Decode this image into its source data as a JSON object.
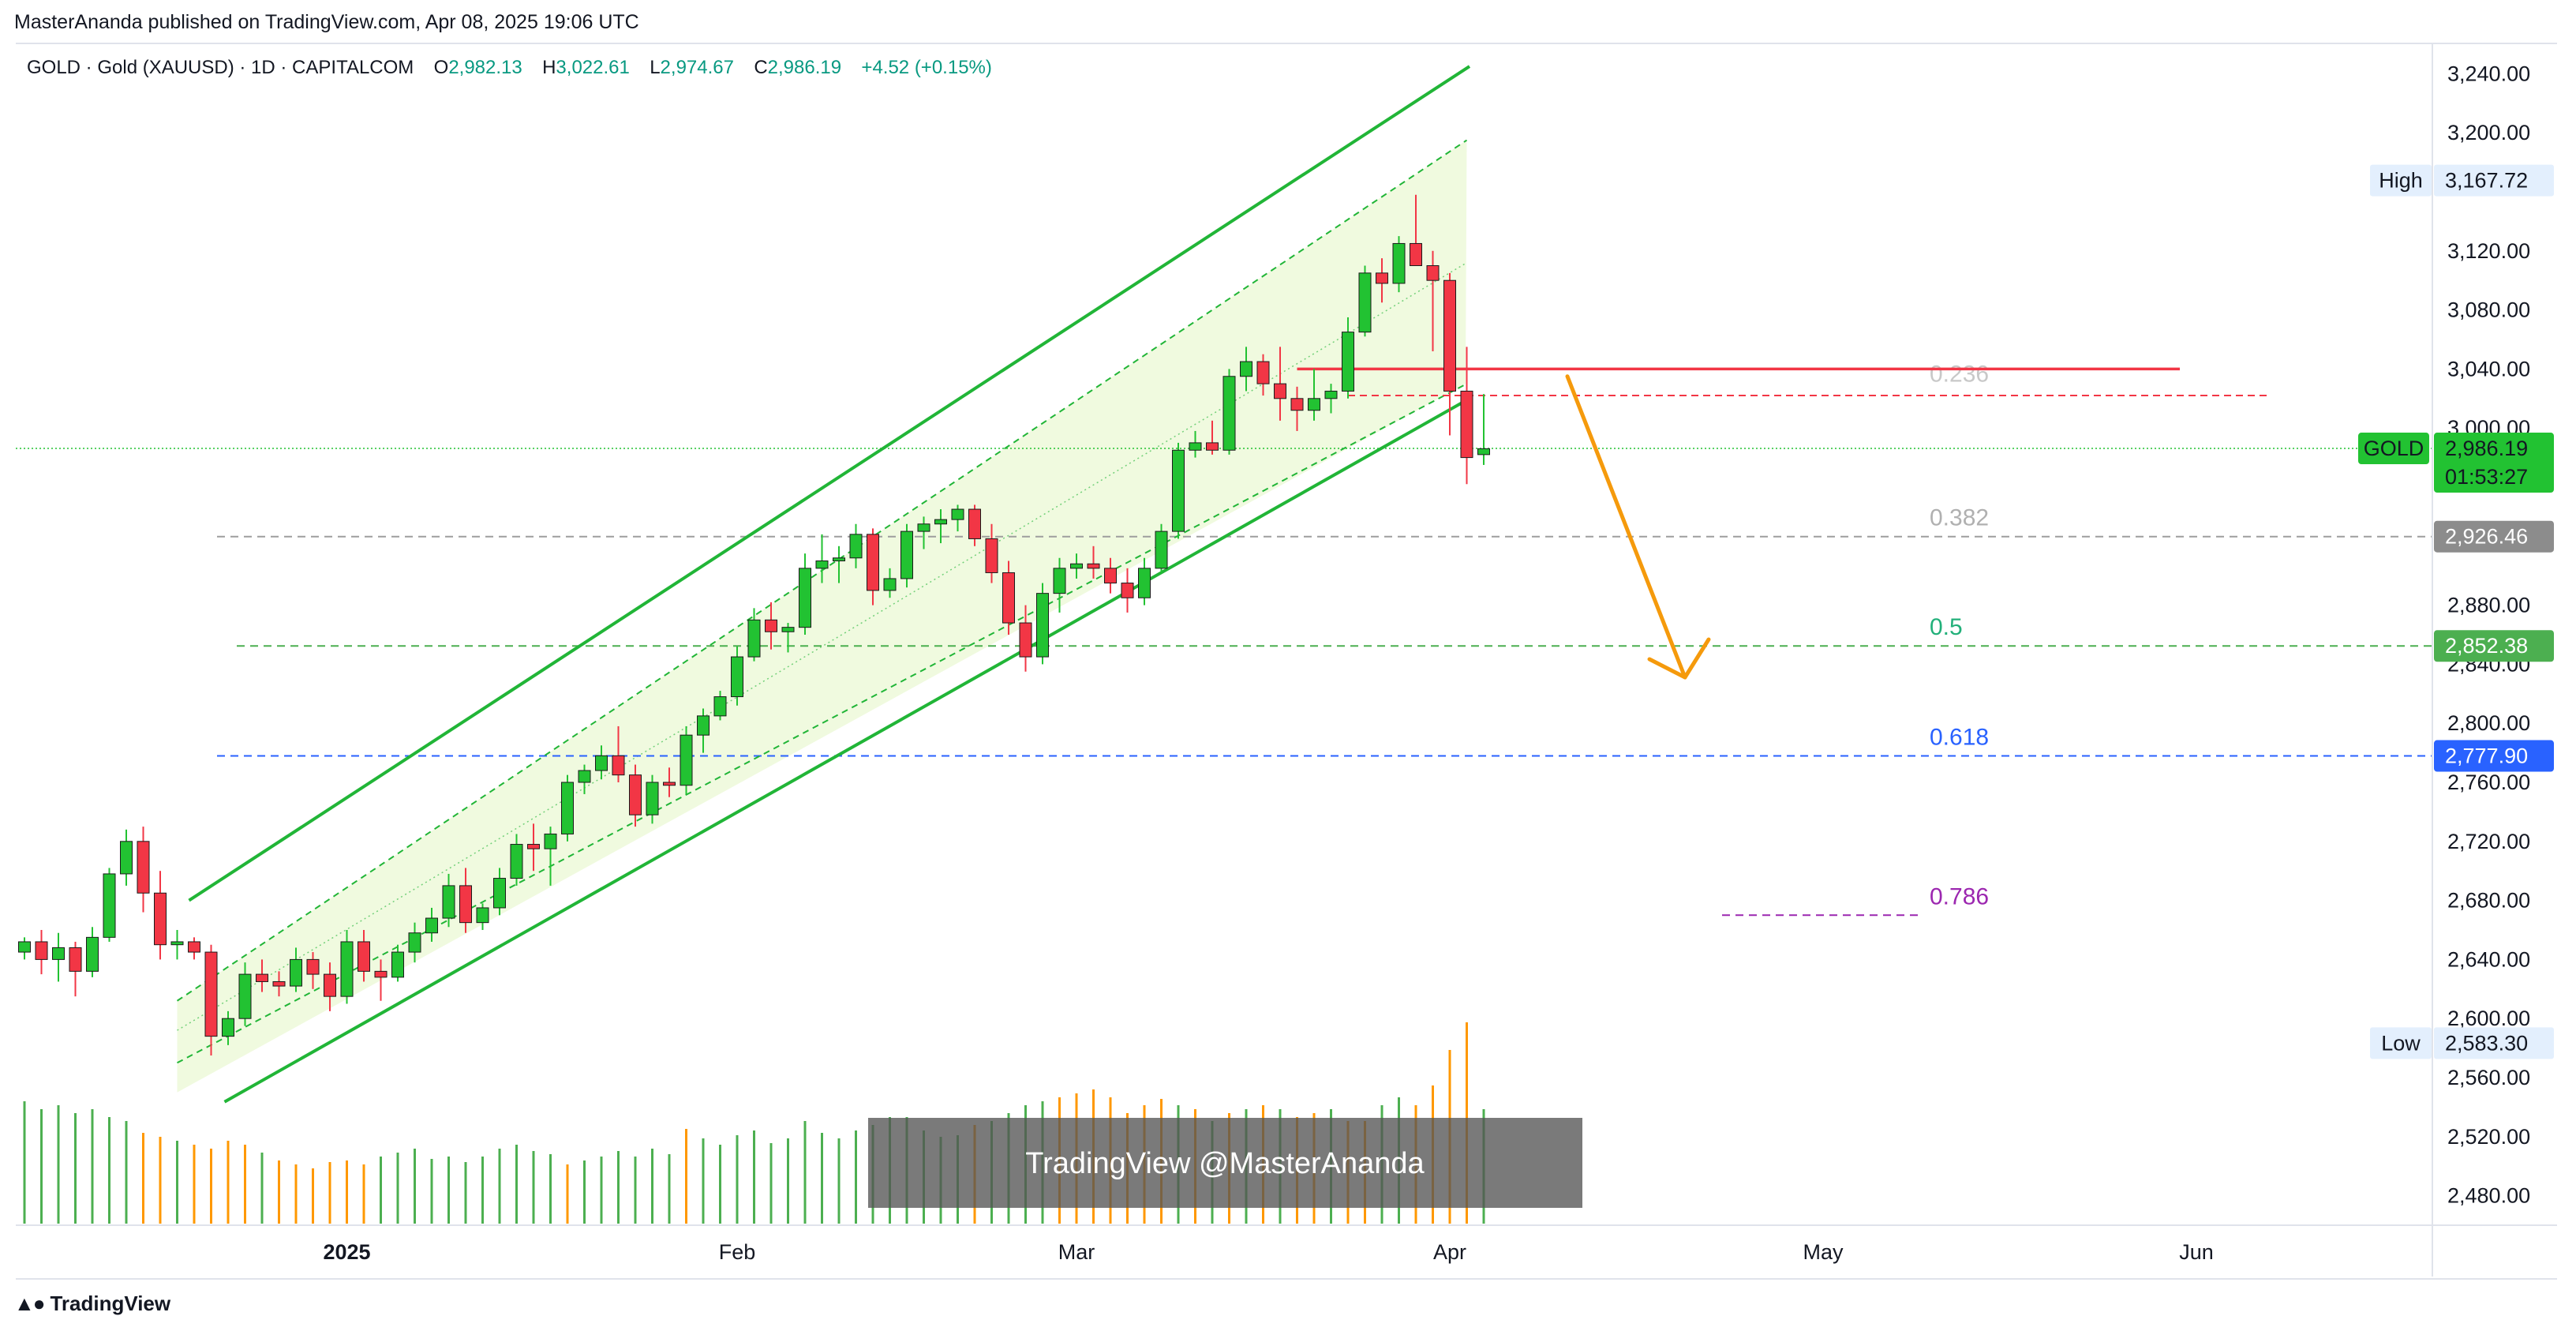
{
  "header": {
    "published": "MasterAnanda published on TradingView.com, Apr 08, 2025 19:06 UTC"
  },
  "legend": {
    "symbol": "GOLD · Gold (XAUUSD) · 1D · CAPITALCOM",
    "o_label": "O",
    "o_value": "2,982.13",
    "h_label": "H",
    "h_value": "3,022.61",
    "l_label": "L",
    "l_value": "2,974.67",
    "c_label": "C",
    "c_value": "2,986.19",
    "change": "+4.52 (+0.15%)"
  },
  "footer": {
    "brand": "TradingView"
  },
  "watermark": "TradingView @MasterAnanda",
  "colors": {
    "up": "#22c232",
    "down": "#f23645",
    "volume_up": "#4caf50",
    "volume_down": "#ff9800",
    "channel_line": "#21b537",
    "channel_fill": "#eef9dc",
    "resistance": "#f23645",
    "arrow": "#f59a0c",
    "fib_0382": "#9e9e9e",
    "fib_05": "#4caf50",
    "fib_0618": "#2962ff",
    "fib_0786": "#9c27b0"
  },
  "chart_data": {
    "type": "candlestick",
    "symbol": "GOLD",
    "timeframe": "1D",
    "ylim": [
      2460,
      3260
    ],
    "y_ticks": [
      "3,240.00",
      "3,200.00",
      "3,120.00",
      "3,080.00",
      "3,040.00",
      "3,000.00",
      "2,880.00",
      "2,840.00",
      "2,800.00",
      "2,760.00",
      "2,720.00",
      "2,680.00",
      "2,640.00",
      "2,600.00",
      "2,560.00",
      "2,520.00",
      "2,480.00"
    ],
    "y_tick_values": [
      3240,
      3200,
      3120,
      3080,
      3040,
      3000,
      2880,
      2840,
      2800,
      2760,
      2720,
      2680,
      2640,
      2600,
      2560,
      2520,
      2480
    ],
    "x_labels": [
      {
        "label": "2025",
        "index": 19,
        "bold": true
      },
      {
        "label": "Feb",
        "index": 42,
        "bold": false
      },
      {
        "label": "Mar",
        "index": 62,
        "bold": false
      },
      {
        "label": "Apr",
        "index": 84,
        "bold": false
      },
      {
        "label": "May",
        "index": 106,
        "bold": false
      },
      {
        "label": "Jun",
        "index": 128,
        "bold": false
      }
    ],
    "candles": [
      [
        2645,
        2655,
        2640,
        2652
      ],
      [
        2652,
        2660,
        2630,
        2640
      ],
      [
        2640,
        2658,
        2625,
        2648
      ],
      [
        2648,
        2652,
        2615,
        2632
      ],
      [
        2632,
        2662,
        2628,
        2655
      ],
      [
        2655,
        2702,
        2652,
        2698
      ],
      [
        2698,
        2728,
        2690,
        2720
      ],
      [
        2720,
        2730,
        2672,
        2685
      ],
      [
        2685,
        2700,
        2640,
        2650
      ],
      [
        2650,
        2660,
        2640,
        2652
      ],
      [
        2652,
        2655,
        2640,
        2645
      ],
      [
        2645,
        2650,
        2575,
        2588
      ],
      [
        2588,
        2605,
        2582,
        2600
      ],
      [
        2600,
        2638,
        2595,
        2630
      ],
      [
        2630,
        2640,
        2618,
        2625
      ],
      [
        2625,
        2632,
        2615,
        2622
      ],
      [
        2622,
        2648,
        2618,
        2640
      ],
      [
        2640,
        2645,
        2620,
        2630
      ],
      [
        2630,
        2638,
        2605,
        2615
      ],
      [
        2615,
        2660,
        2610,
        2652
      ],
      [
        2652,
        2660,
        2625,
        2632
      ],
      [
        2632,
        2640,
        2612,
        2628
      ],
      [
        2628,
        2650,
        2625,
        2645
      ],
      [
        2645,
        2665,
        2638,
        2658
      ],
      [
        2658,
        2675,
        2652,
        2668
      ],
      [
        2668,
        2698,
        2662,
        2690
      ],
      [
        2690,
        2702,
        2658,
        2665
      ],
      [
        2665,
        2678,
        2660,
        2675
      ],
      [
        2675,
        2702,
        2670,
        2695
      ],
      [
        2695,
        2725,
        2690,
        2718
      ],
      [
        2718,
        2732,
        2700,
        2715
      ],
      [
        2715,
        2730,
        2690,
        2725
      ],
      [
        2725,
        2765,
        2720,
        2760
      ],
      [
        2760,
        2772,
        2752,
        2768
      ],
      [
        2768,
        2785,
        2762,
        2778
      ],
      [
        2778,
        2798,
        2760,
        2765
      ],
      [
        2765,
        2772,
        2730,
        2738
      ],
      [
        2738,
        2765,
        2732,
        2760
      ],
      [
        2760,
        2770,
        2750,
        2758
      ],
      [
        2758,
        2798,
        2752,
        2792
      ],
      [
        2792,
        2810,
        2780,
        2805
      ],
      [
        2805,
        2822,
        2802,
        2818
      ],
      [
        2818,
        2852,
        2812,
        2845
      ],
      [
        2845,
        2878,
        2842,
        2870
      ],
      [
        2870,
        2882,
        2850,
        2862
      ],
      [
        2862,
        2868,
        2848,
        2865
      ],
      [
        2865,
        2915,
        2860,
        2905
      ],
      [
        2905,
        2928,
        2895,
        2910
      ],
      [
        2910,
        2920,
        2895,
        2912
      ],
      [
        2912,
        2935,
        2905,
        2928
      ],
      [
        2928,
        2932,
        2880,
        2890
      ],
      [
        2890,
        2905,
        2885,
        2898
      ],
      [
        2898,
        2935,
        2892,
        2930
      ],
      [
        2930,
        2940,
        2918,
        2935
      ],
      [
        2935,
        2945,
        2922,
        2938
      ],
      [
        2938,
        2948,
        2930,
        2945
      ],
      [
        2945,
        2948,
        2920,
        2925
      ],
      [
        2925,
        2935,
        2895,
        2902
      ],
      [
        2902,
        2910,
        2860,
        2868
      ],
      [
        2868,
        2880,
        2835,
        2845
      ],
      [
        2845,
        2895,
        2840,
        2888
      ],
      [
        2888,
        2912,
        2875,
        2905
      ],
      [
        2905,
        2915,
        2898,
        2908
      ],
      [
        2908,
        2920,
        2898,
        2905
      ],
      [
        2905,
        2912,
        2888,
        2895
      ],
      [
        2895,
        2905,
        2875,
        2885
      ],
      [
        2885,
        2912,
        2880,
        2905
      ],
      [
        2905,
        2935,
        2902,
        2930
      ],
      [
        2930,
        2990,
        2925,
        2985
      ],
      [
        2985,
        2998,
        2980,
        2990
      ],
      [
        2990,
        3005,
        2982,
        2985
      ],
      [
        2985,
        3040,
        2982,
        3035
      ],
      [
        3035,
        3055,
        3025,
        3045
      ],
      [
        3045,
        3050,
        3022,
        3030
      ],
      [
        3030,
        3055,
        3005,
        3020
      ],
      [
        3020,
        3028,
        2998,
        3012
      ],
      [
        3012,
        3040,
        3005,
        3020
      ],
      [
        3020,
        3030,
        3010,
        3025
      ],
      [
        3025,
        3075,
        3020,
        3065
      ],
      [
        3065,
        3110,
        3062,
        3105
      ],
      [
        3105,
        3115,
        3085,
        3098
      ],
      [
        3098,
        3130,
        3092,
        3125
      ],
      [
        3125,
        3158,
        3112,
        3110
      ],
      [
        3110,
        3120,
        3052,
        3100
      ],
      [
        3100,
        3105,
        2995,
        3025
      ],
      [
        3025,
        3055,
        2962,
        2980
      ],
      [
        2982,
        3023,
        2975,
        2986
      ]
    ],
    "volume": [
      [
        1,
        "up",
        155
      ],
      [
        1,
        "up",
        145
      ],
      [
        1,
        "up",
        150
      ],
      [
        1,
        "up",
        140
      ],
      [
        1,
        "up",
        145
      ],
      [
        1,
        "up",
        135
      ],
      [
        1,
        "up",
        130
      ],
      [
        1,
        "down",
        115
      ],
      [
        1,
        "down",
        110
      ],
      [
        1,
        "up",
        105
      ],
      [
        1,
        "down",
        100
      ],
      [
        1,
        "down",
        95
      ],
      [
        1,
        "down",
        105
      ],
      [
        1,
        "down",
        100
      ],
      [
        1,
        "up",
        90
      ],
      [
        1,
        "down",
        80
      ],
      [
        1,
        "down",
        75
      ],
      [
        1,
        "down",
        70
      ],
      [
        1,
        "down",
        78
      ],
      [
        1,
        "down",
        80
      ],
      [
        1,
        "down",
        75
      ],
      [
        1,
        "up",
        85
      ],
      [
        1,
        "up",
        90
      ],
      [
        1,
        "up",
        95
      ],
      [
        1,
        "up",
        82
      ],
      [
        1,
        "up",
        85
      ],
      [
        1,
        "up",
        78
      ],
      [
        1,
        "up",
        85
      ],
      [
        1,
        "up",
        95
      ],
      [
        1,
        "up",
        100
      ],
      [
        1,
        "up",
        92
      ],
      [
        1,
        "up",
        88
      ],
      [
        1,
        "down",
        75
      ],
      [
        1,
        "up",
        80
      ],
      [
        1,
        "up",
        85
      ],
      [
        1,
        "up",
        92
      ],
      [
        1,
        "up",
        85
      ],
      [
        1,
        "up",
        95
      ],
      [
        1,
        "up",
        88
      ],
      [
        1,
        "down",
        120
      ],
      [
        1,
        "up",
        108
      ],
      [
        1,
        "up",
        100
      ],
      [
        1,
        "up",
        112
      ],
      [
        1,
        "up",
        118
      ],
      [
        1,
        "up",
        102
      ],
      [
        1,
        "up",
        108
      ],
      [
        1,
        "up",
        130
      ],
      [
        1,
        "up",
        115
      ],
      [
        1,
        "up",
        108
      ],
      [
        1,
        "up",
        118
      ],
      [
        1,
        "up",
        125
      ],
      [
        1,
        "up",
        135
      ],
      [
        1,
        "up",
        135
      ],
      [
        1,
        "up",
        118
      ],
      [
        1,
        "up",
        110
      ],
      [
        1,
        "up",
        112
      ],
      [
        1,
        "down",
        125
      ],
      [
        1,
        "up",
        130
      ],
      [
        1,
        "up",
        140
      ],
      [
        1,
        "up",
        150
      ],
      [
        1,
        "up",
        155
      ],
      [
        1,
        "down",
        160
      ],
      [
        1,
        "down",
        165
      ],
      [
        1,
        "down",
        170
      ],
      [
        1,
        "down",
        160
      ],
      [
        1,
        "down",
        140
      ],
      [
        1,
        "down",
        150
      ],
      [
        1,
        "down",
        158
      ],
      [
        1,
        "up",
        150
      ],
      [
        1,
        "down",
        145
      ],
      [
        1,
        "up",
        130
      ],
      [
        1,
        "down",
        140
      ],
      [
        1,
        "up",
        145
      ],
      [
        1,
        "down",
        150
      ],
      [
        1,
        "up",
        145
      ],
      [
        1,
        "down",
        135
      ],
      [
        1,
        "down",
        140
      ],
      [
        1,
        "up",
        145
      ],
      [
        1,
        "down",
        130
      ],
      [
        1,
        "down",
        130
      ],
      [
        1,
        "up",
        150
      ],
      [
        1,
        "up",
        160
      ],
      [
        1,
        "down",
        150
      ],
      [
        1,
        "down",
        175
      ],
      [
        1,
        "down",
        220
      ],
      [
        1,
        "down",
        255
      ],
      [
        1,
        "up",
        145
      ]
    ],
    "channel": {
      "upper_solid": [
        [
          9,
          2680
        ],
        [
          84,
          3245
        ]
      ],
      "lower_solid": [
        [
          9,
          2550
        ],
        [
          84,
          3020
        ]
      ],
      "upper_dashed": [
        [
          9,
          2612
        ],
        [
          85,
          3195
        ]
      ],
      "lower_dashed": [
        [
          9,
          2570
        ],
        [
          85,
          3030
        ]
      ]
    },
    "resistance_level": 3040,
    "resistance_dashed_level": 3022,
    "fib_levels": [
      {
        "label": "0.236",
        "value": 3040
      },
      {
        "label": "0.382",
        "value": 2926.46
      },
      {
        "label": "0.5",
        "value": 2852.38
      },
      {
        "label": "0.618",
        "value": 2777.9
      },
      {
        "label": "0.786",
        "value": 2670
      }
    ],
    "price_tags": [
      {
        "label": "GOLD",
        "value": "2,986.19",
        "sub": "01:53:27",
        "price": 2986.19,
        "color": "#22c232"
      },
      {
        "label": "",
        "value": "2,926.46",
        "sub": "",
        "price": 2926.46,
        "color": "#8c8c8c"
      },
      {
        "label": "",
        "value": "2,852.38",
        "sub": "",
        "price": 2852.38,
        "color": "#4caf50"
      },
      {
        "label": "",
        "value": "2,777.90",
        "sub": "",
        "price": 2777.9,
        "color": "#2962ff"
      }
    ],
    "high": {
      "label": "High",
      "value": "3,167.72",
      "price": 3167.72
    },
    "low": {
      "label": "Low",
      "value": "2,583.30",
      "price": 2583.3
    },
    "projection_arrow": {
      "from": [
        90,
        3035
      ],
      "to": [
        96,
        2840
      ]
    }
  }
}
